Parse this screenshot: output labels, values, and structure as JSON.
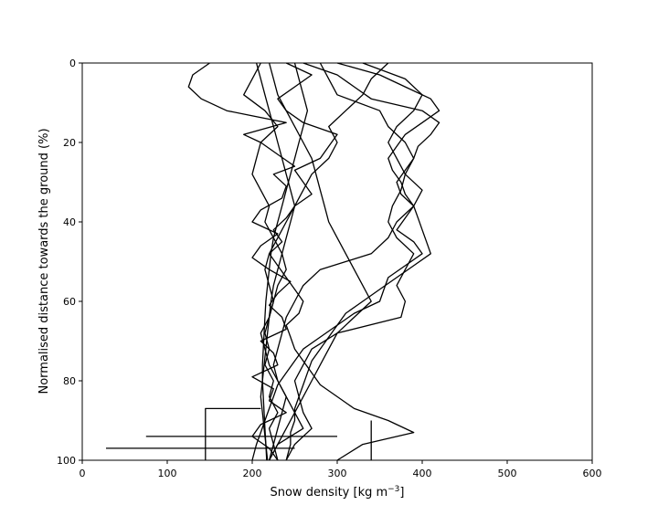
{
  "chart_data": {
    "type": "line",
    "title": "",
    "xlabel": "Snow density [kg m",
    "xlabel_sup": "−3",
    "xlabel_tail": "]",
    "ylabel": "Normalised distance towards the ground (%)",
    "xlim": [
      0,
      600
    ],
    "ylim": [
      100,
      0
    ],
    "y_inverted": true,
    "grid": false,
    "legend": "none",
    "xticks": [
      "0",
      "100",
      "200",
      "300",
      "400",
      "500",
      "600"
    ],
    "yticks": [
      "0",
      "20",
      "40",
      "60",
      "80",
      "100"
    ],
    "line_color": "#000000",
    "series": [
      {
        "y": [
          0,
          3,
          6,
          9,
          12,
          15,
          18,
          20,
          23,
          26,
          28,
          31,
          34,
          37,
          40,
          43,
          46,
          49,
          52,
          55,
          58,
          61,
          64,
          67,
          70,
          73,
          76,
          79,
          82,
          85,
          88,
          91,
          94,
          97,
          100
        ],
        "x": [
          150,
          130,
          125,
          140,
          170,
          240,
          190,
          210,
          230,
          250,
          225,
          240,
          235,
          210,
          200,
          230,
          210,
          200,
          220,
          245,
          230,
          220,
          235,
          240,
          210,
          225,
          230,
          200,
          225,
          220,
          240,
          210,
          200,
          220,
          230
        ]
      },
      {
        "y": [
          0,
          3,
          6,
          9,
          12,
          15,
          18,
          21,
          24,
          27,
          30,
          33,
          36,
          39,
          42,
          45,
          48,
          51,
          54,
          57,
          60,
          63,
          66,
          69,
          72,
          75,
          78,
          81,
          84,
          87,
          90,
          93,
          96,
          100
        ],
        "x": [
          260,
          300,
          320,
          340,
          400,
          420,
          410,
          395,
          390,
          380,
          370,
          375,
          390,
          380,
          370,
          390,
          400,
          380,
          360,
          355,
          350,
          320,
          300,
          280,
          260,
          250,
          240,
          230,
          225,
          220,
          215,
          210,
          205,
          200
        ]
      },
      {
        "y": [
          0,
          4,
          8,
          12,
          16,
          20,
          24,
          28,
          32,
          36,
          40,
          44,
          48,
          52,
          56,
          60,
          64,
          68,
          72,
          76,
          80,
          84,
          88,
          92,
          96,
          100
        ],
        "x": [
          280,
          290,
          300,
          350,
          360,
          380,
          390,
          380,
          400,
          390,
          370,
          360,
          340,
          280,
          260,
          250,
          240,
          235,
          230,
          225,
          230,
          240,
          235,
          230,
          225,
          220
        ]
      },
      {
        "y": [
          0,
          3,
          6,
          9,
          12,
          15,
          18,
          21,
          24,
          27,
          30,
          33,
          36,
          39,
          42,
          45,
          48,
          51,
          54,
          57,
          60,
          63,
          66,
          69,
          72,
          75,
          78,
          81,
          84,
          87,
          90,
          93,
          96,
          100
        ],
        "x": [
          240,
          270,
          250,
          230,
          240,
          260,
          300,
          290,
          280,
          250,
          260,
          270,
          250,
          240,
          225,
          235,
          220,
          230,
          240,
          250,
          260,
          255,
          240,
          245,
          250,
          260,
          270,
          280,
          300,
          320,
          360,
          390,
          330,
          300
        ]
      },
      {
        "y": [
          0,
          4,
          8,
          12,
          16,
          20,
          24,
          28,
          32,
          36,
          40,
          44,
          48,
          52,
          56,
          60,
          64,
          68,
          72,
          76,
          80,
          84,
          88,
          92,
          96,
          100
        ],
        "x": [
          360,
          340,
          330,
          310,
          290,
          300,
          290,
          270,
          260,
          250,
          240,
          230,
          220,
          215,
          220,
          225,
          220,
          215,
          220,
          215,
          225,
          220,
          230,
          220,
          225,
          230
        ]
      },
      {
        "y": [
          0,
          3,
          6,
          9,
          12,
          15,
          18,
          21,
          24,
          27,
          30,
          33,
          36,
          39,
          42,
          45,
          48,
          51,
          54,
          57,
          60,
          63,
          66,
          69,
          72,
          75,
          78,
          81,
          84,
          87,
          90,
          93,
          96,
          100
        ],
        "x": [
          300,
          350,
          380,
          410,
          420,
          400,
          380,
          370,
          360,
          365,
          375,
          380,
          390,
          395,
          400,
          405,
          410,
          390,
          370,
          350,
          330,
          310,
          300,
          290,
          280,
          270,
          265,
          260,
          255,
          250,
          250,
          245,
          245,
          240
        ]
      },
      {
        "y": [
          0,
          4,
          8,
          12,
          16,
          20,
          24,
          28,
          32,
          36,
          40,
          44,
          48,
          52,
          56,
          60,
          64,
          68,
          72,
          76,
          80,
          84,
          88,
          92,
          96,
          100
        ],
        "x": [
          210,
          200,
          190,
          215,
          230,
          210,
          205,
          200,
          210,
          220,
          215,
          225,
          235,
          240,
          230,
          225,
          220,
          210,
          215,
          220,
          230,
          240,
          250,
          260,
          230,
          220
        ]
      },
      {
        "y": [
          0,
          4,
          8,
          12,
          16,
          20,
          24,
          28,
          32,
          36,
          40,
          44,
          48,
          52,
          56,
          60,
          64,
          68,
          72,
          76,
          80,
          84,
          88,
          92,
          96,
          100
        ],
        "x": [
          330,
          380,
          400,
          390,
          370,
          360,
          370,
          380,
          375,
          365,
          360,
          370,
          390,
          380,
          370,
          380,
          375,
          300,
          270,
          260,
          250,
          255,
          260,
          270,
          250,
          240
        ]
      },
      {
        "y": [
          0,
          4,
          8,
          12,
          16,
          20,
          24,
          28,
          32,
          36,
          40,
          44,
          48,
          52,
          56,
          60,
          64,
          68,
          72,
          76,
          80,
          84,
          88,
          92,
          96,
          100
        ],
        "x": [
          250,
          255,
          260,
          265,
          260,
          255,
          250,
          245,
          240,
          235,
          230,
          225,
          222,
          220,
          218,
          216,
          215,
          214,
          213,
          212,
          212,
          213,
          214,
          215,
          216,
          217
        ]
      },
      {
        "y": [
          0,
          4,
          8,
          12,
          16,
          20,
          24,
          28,
          32,
          36,
          40,
          44,
          48,
          52,
          56,
          60,
          64,
          68,
          72,
          76,
          80,
          84,
          88,
          92,
          96,
          100
        ],
        "x": [
          220,
          225,
          230,
          240,
          250,
          260,
          270,
          275,
          280,
          285,
          290,
          300,
          310,
          320,
          330,
          340,
          320,
          300,
          290,
          280,
          270,
          260,
          250,
          240,
          230,
          220
        ]
      },
      {
        "y": [
          0,
          4,
          8,
          12,
          16,
          20,
          24,
          28,
          32,
          36,
          40,
          44,
          48,
          52,
          56,
          60,
          64,
          68,
          72,
          76,
          80,
          84,
          88,
          92,
          96,
          100
        ],
        "x": [
          205,
          210,
          215,
          220,
          225,
          230,
          235,
          240,
          245,
          250,
          245,
          240,
          235,
          230,
          225,
          222,
          220,
          218,
          216,
          214,
          212,
          210,
          212,
          214,
          216,
          218
        ]
      },
      {
        "y": [
          87,
          87,
          100
        ],
        "x": [
          210,
          145,
          145
        ]
      },
      {
        "y": [
          90,
          90,
          100
        ],
        "x": [
          340,
          340,
          340
        ]
      },
      {
        "y": [
          94,
          94
        ],
        "x": [
          75,
          300
        ]
      },
      {
        "y": [
          97,
          97
        ],
        "x": [
          28,
          250
        ]
      }
    ]
  }
}
